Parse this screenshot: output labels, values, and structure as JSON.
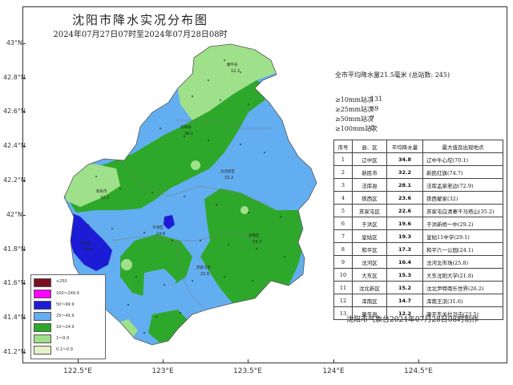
{
  "title": "沈阳市降水实况分布图",
  "subtitle": "2024年07月27日07时至2024年07月28日08时",
  "summary": "全市平均降水量21.5毫米 (总站数: 245)",
  "counts": [
    {
      "label": "≥10mm站次",
      "value": "131"
    },
    {
      "label": "≥25mm站次",
      "value": "69"
    },
    {
      "label": "≥50mm站次",
      "value": "7"
    },
    {
      "label": "≥100mm站次",
      "value": "0"
    }
  ],
  "table": {
    "headers": [
      "序号",
      "县、区",
      "平均降水量",
      "最大值及出现地点"
    ],
    "rows": [
      [
        "1",
        "辽中区",
        "34.8",
        "辽中牛心坨(70.1)"
      ],
      [
        "2",
        "新民市",
        "32.2",
        "新民红旗(74.7)"
      ],
      [
        "3",
        "法库县",
        "28.1",
        "法库孟家老边(72.9)"
      ],
      [
        "4",
        "铁西区",
        "23.6",
        "铁西翟家(32)"
      ],
      [
        "5",
        "苏家屯区",
        "22.6",
        "苏家屯白清寨千马塔山(35.2)"
      ],
      [
        "6",
        "于洪区",
        "19.6",
        "于洪新桥一中(29.2)"
      ],
      [
        "7",
        "皇姑区",
        "19.3",
        "皇姑11中学(29.1)"
      ],
      [
        "8",
        "和平区",
        "17.3",
        "和平六一公园(24.1)"
      ],
      [
        "9",
        "沈河区",
        "16.4",
        "沈河北市场(25.8)"
      ],
      [
        "10",
        "大东区",
        "15.3",
        "大东沈阳大学(21.8)"
      ],
      [
        "11",
        "沈北新区",
        "15.2",
        "沈北尹特南乐世界(26.2)"
      ],
      [
        "12",
        "浑南区",
        "14.7",
        "浑南王滨(31.6)"
      ],
      [
        "13",
        "康平县",
        "12.2",
        "康平东关拉马屯(23.5)"
      ]
    ]
  },
  "footer": "沈阳市气象台2024年07月28日08时制作",
  "axes": {
    "y_labels": [
      "43°N",
      "42.8°N",
      "42.6°N",
      "42.4°N",
      "42.2°N",
      "42°N",
      "41.8°N",
      "41.6°N",
      "41.4°N",
      "41.2°N"
    ],
    "x_labels": [
      "122.5°E",
      "123°E",
      "123.5°E",
      "124°E",
      "124.5°E"
    ]
  },
  "legend": [
    {
      "label": "≥250",
      "color": "#7a1020"
    },
    {
      "label": "100～249.9",
      "color": "#ff00ff"
    },
    {
      "label": "50～99.9",
      "color": "#1c1cd6"
    },
    {
      "label": "25～49.9",
      "color": "#63aef0"
    },
    {
      "label": "10～24.9",
      "color": "#2ea82a"
    },
    {
      "label": "1～9.9",
      "color": "#9fe08a"
    },
    {
      "label": "0.1～0.9",
      "color": "#e6f2c8"
    }
  ],
  "map_colors": {
    "light_green": "#9fe08a",
    "green": "#2ea82a",
    "light_blue": "#63aef0",
    "blue": "#1c1cd6",
    "pale": "#e6f2c8"
  },
  "map_labels": [
    {
      "name": "康平县",
      "value": "12.2"
    },
    {
      "name": "法库县",
      "value": "28.1"
    },
    {
      "name": "新民市",
      "value": "32.2"
    },
    {
      "name": "沈北新区",
      "value": "15.2"
    },
    {
      "name": "辽中区",
      "value": "34.8"
    },
    {
      "name": "苏家屯区",
      "value": "22.6"
    },
    {
      "name": "浑南区",
      "value": "14.7"
    },
    {
      "name": "于洪区",
      "value": "19.6"
    }
  ]
}
